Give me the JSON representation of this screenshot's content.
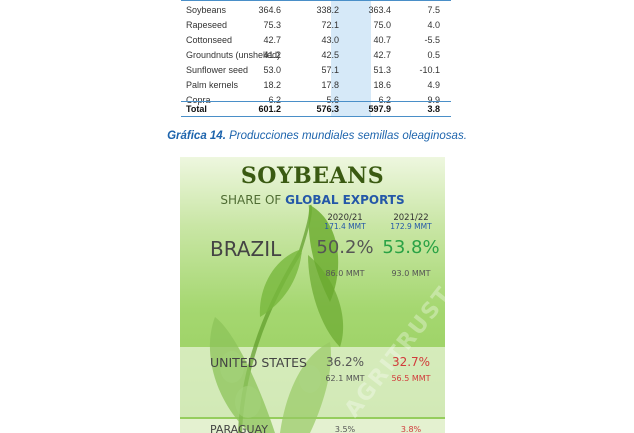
{
  "table": {
    "rows": [
      {
        "name": "Soybeans",
        "v1": "364.6",
        "v2": "338.2",
        "v3": "363.4",
        "v4": "7.5"
      },
      {
        "name": "Rapeseed",
        "v1": "75.3",
        "v2": "72.1",
        "v3": "75.0",
        "v4": "4.0"
      },
      {
        "name": "Cottonseed",
        "v1": "42.7",
        "v2": "43.0",
        "v3": "40.7",
        "v4": "-5.5"
      },
      {
        "name": "Groundnuts (unshelled)",
        "v1": "41.2",
        "v2": "42.5",
        "v3": "42.7",
        "v4": "0.5"
      },
      {
        "name": "Sunflower seed",
        "v1": "53.0",
        "v2": "57.1",
        "v3": "51.3",
        "v4": "-10.1"
      },
      {
        "name": "Palm kernels",
        "v1": "18.2",
        "v2": "17.8",
        "v3": "18.6",
        "v4": "4.9"
      },
      {
        "name": "Copra",
        "v1": "6.2",
        "v2": "5.6",
        "v3": "6.2",
        "v4": "9.9"
      }
    ],
    "total": {
      "name": "Total",
      "v1": "601.2",
      "v2": "576.3",
      "v3": "597.9",
      "v4": "3.8"
    }
  },
  "caption": {
    "label": "Gráfica 14.",
    "text": " Producciones mundiales semillas oleaginosas."
  },
  "infographic": {
    "title": "SOYBEANS",
    "subtitle_prefix": "SHARE OF ",
    "subtitle_highlight": "GLOBAL EXPORTS",
    "years": [
      {
        "label": "2020/21",
        "mmt": "171.4 MMT"
      },
      {
        "label": "2021/22",
        "mmt": "172.9 MMT"
      }
    ],
    "countries": [
      {
        "name": "BRAZIL",
        "share1": "50.2%",
        "share2": "53.8%",
        "vol1": "86.0 MMT",
        "vol2": "93.0 MMT"
      },
      {
        "name": "UNITED STATES",
        "share1": "36.2%",
        "share2": "32.7%",
        "vol1": "62.1 MMT",
        "vol2": "56.5 MMT"
      },
      {
        "name": "PARAGUAY",
        "share1": "3.5%",
        "share2": "3.8%"
      }
    ],
    "watermark": "AGRITRUST",
    "colors": {
      "up": "#2aa245",
      "down": "#d13b3b",
      "accent": "#2458a8"
    }
  }
}
